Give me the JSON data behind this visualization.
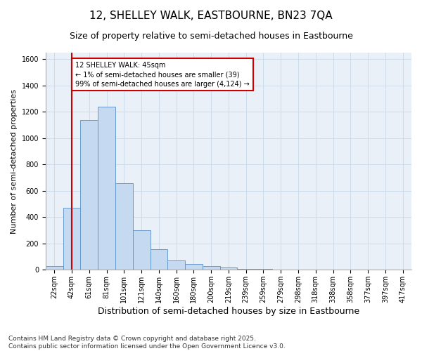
{
  "title": "12, SHELLEY WALK, EASTBOURNE, BN23 7QA",
  "subtitle": "Size of property relative to semi-detached houses in Eastbourne",
  "xlabel": "Distribution of semi-detached houses by size in Eastbourne",
  "ylabel": "Number of semi-detached properties",
  "categories": [
    "22sqm",
    "42sqm",
    "61sqm",
    "81sqm",
    "101sqm",
    "121sqm",
    "140sqm",
    "160sqm",
    "180sqm",
    "200sqm",
    "219sqm",
    "239sqm",
    "259sqm",
    "279sqm",
    "298sqm",
    "318sqm",
    "338sqm",
    "358sqm",
    "377sqm",
    "397sqm",
    "417sqm"
  ],
  "values": [
    30,
    470,
    1140,
    1240,
    660,
    300,
    155,
    70,
    45,
    30,
    20,
    10,
    5,
    3,
    2,
    1,
    1,
    1,
    0,
    0,
    0
  ],
  "bar_color": "#c5d9f0",
  "bar_edge_color": "#6699cc",
  "highlight_color": "#cc0000",
  "annotation_text": "12 SHELLEY WALK: 45sqm\n← 1% of semi-detached houses are smaller (39)\n99% of semi-detached houses are larger (4,124) →",
  "annotation_box_color": "#cc0000",
  "ylim": [
    0,
    1650
  ],
  "yticks": [
    0,
    200,
    400,
    600,
    800,
    1000,
    1200,
    1400,
    1600
  ],
  "grid_color": "#c8d8e8",
  "bg_color": "#eaf0f8",
  "footer": "Contains HM Land Registry data © Crown copyright and database right 2025.\nContains public sector information licensed under the Open Government Licence v3.0.",
  "title_fontsize": 11,
  "subtitle_fontsize": 9,
  "xlabel_fontsize": 9,
  "ylabel_fontsize": 8,
  "tick_fontsize": 7,
  "footer_fontsize": 6.5
}
